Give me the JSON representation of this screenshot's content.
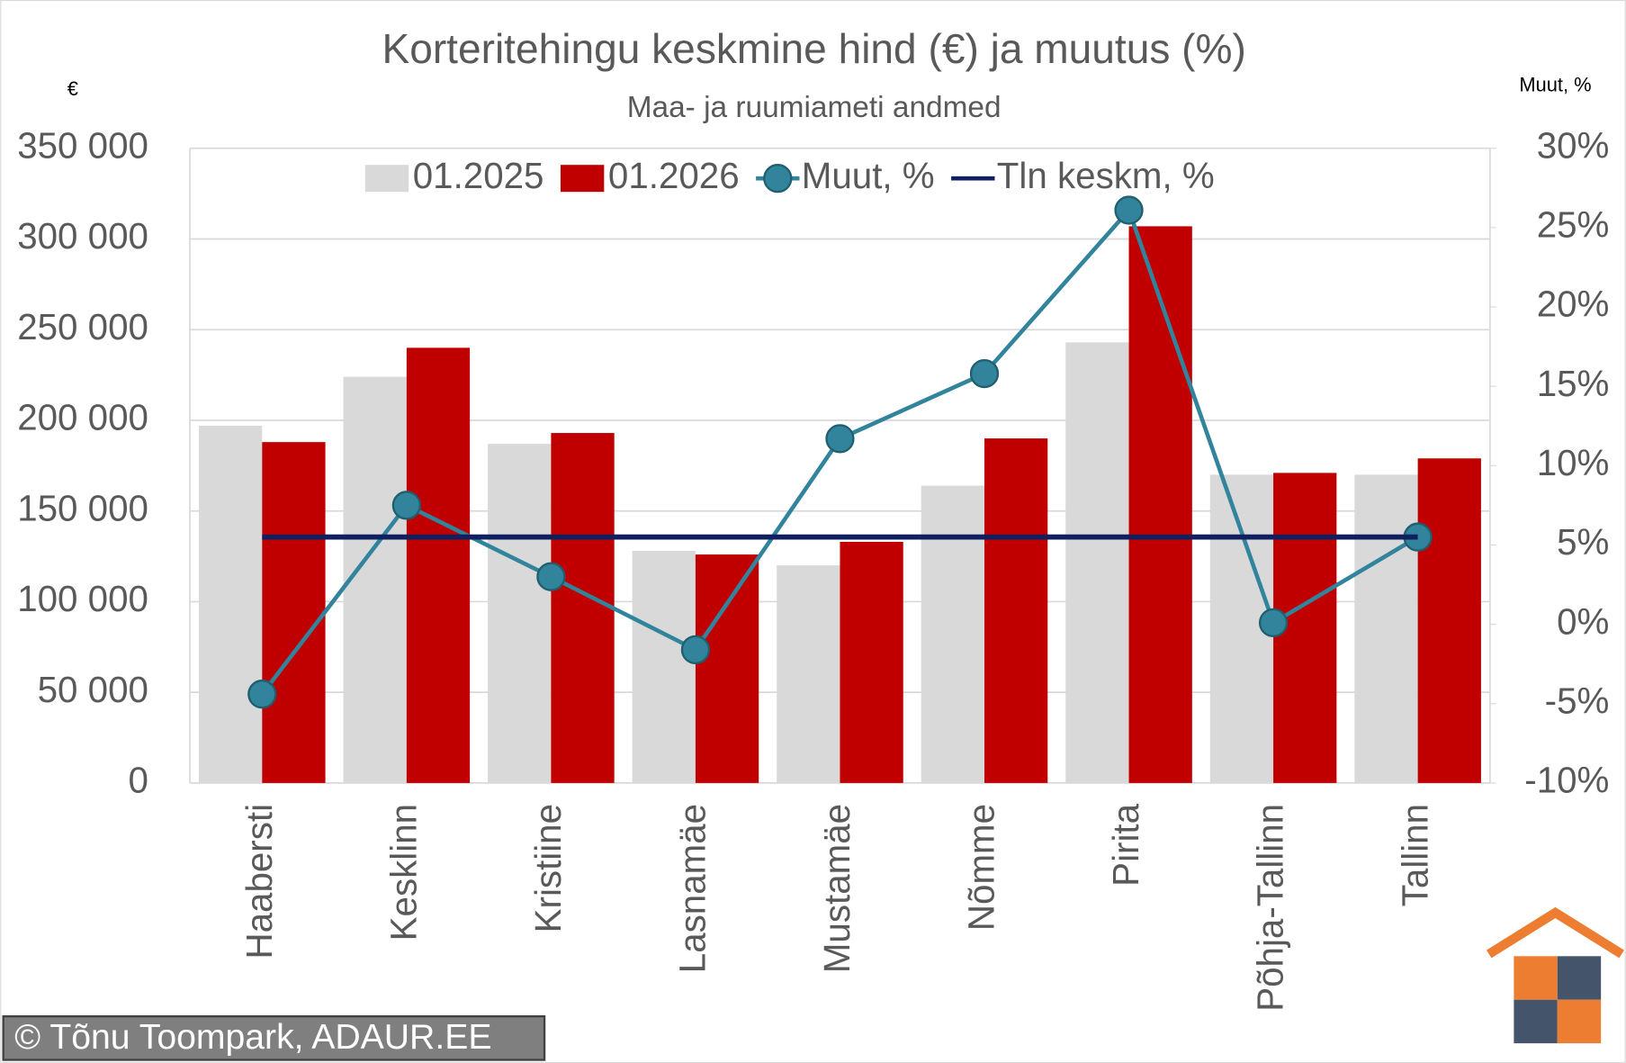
{
  "chart_data": {
    "type": "bar",
    "title": "Korteritehingu keskmine hind (€) ja muutus (%)",
    "subtitle": "Maa- ja ruumiameti andmed",
    "y_label": "€",
    "y2_label": "Muut, %",
    "footer": "© Tõnu Toompark, ADAUR.EE",
    "categories": [
      "Haabersti",
      "Kesklinn",
      "Kristiine",
      "Lasnamäe",
      "Mustamäe",
      "Nõmme",
      "Pirita",
      "Põhja-Tallinn",
      "Tallinn"
    ],
    "series": [
      {
        "name": "01.2025",
        "color": "#d9d9d9",
        "values": [
          197000,
          224000,
          187000,
          128000,
          120000,
          164000,
          243000,
          170000,
          170000
        ]
      },
      {
        "name": "01.2026",
        "color": "#c00000",
        "values": [
          188000,
          240000,
          193000,
          126000,
          133000,
          190000,
          307000,
          171000,
          179000
        ]
      },
      {
        "name": "Muut, %",
        "color": "#31849b",
        "axis": "y2",
        "markers": true,
        "values": [
          -4.4,
          7.5,
          3.0,
          -1.6,
          11.7,
          15.8,
          26.1,
          0.1,
          5.5
        ]
      },
      {
        "name": "Tln keskm, %",
        "color": "#0f1f5f",
        "axis": "y2",
        "markers": false,
        "values": [
          5.5,
          5.5,
          5.5,
          5.5,
          5.5,
          5.5,
          5.5,
          5.5,
          5.5
        ]
      }
    ],
    "ylim": [
      0,
      350000
    ],
    "yticks": [
      0,
      {
        "value": 50000,
        "label": "50 000"
      },
      {
        "value": 100000,
        "label": "100 000"
      },
      {
        "value": 150000,
        "label": "150 000"
      },
      {
        "value": 200000,
        "label": "200 000"
      },
      {
        "value": 250000,
        "label": "250 000"
      },
      {
        "value": 300000,
        "label": "300 000"
      },
      {
        "value": 350000,
        "label": "350 000"
      }
    ],
    "y2lim": [
      -10,
      30
    ],
    "y2ticks": [
      {
        "value": -10,
        "label": "-10%"
      },
      {
        "value": -5,
        "label": "-5%"
      },
      {
        "value": 0,
        "label": "0%"
      },
      {
        "value": 5,
        "label": "5%"
      },
      {
        "value": 10,
        "label": "10%"
      },
      {
        "value": 15,
        "label": "15%"
      },
      {
        "value": 20,
        "label": "20%"
      },
      {
        "value": 25,
        "label": "25%"
      },
      {
        "value": 30,
        "label": "30%"
      }
    ],
    "grid": true,
    "legend": "top"
  }
}
